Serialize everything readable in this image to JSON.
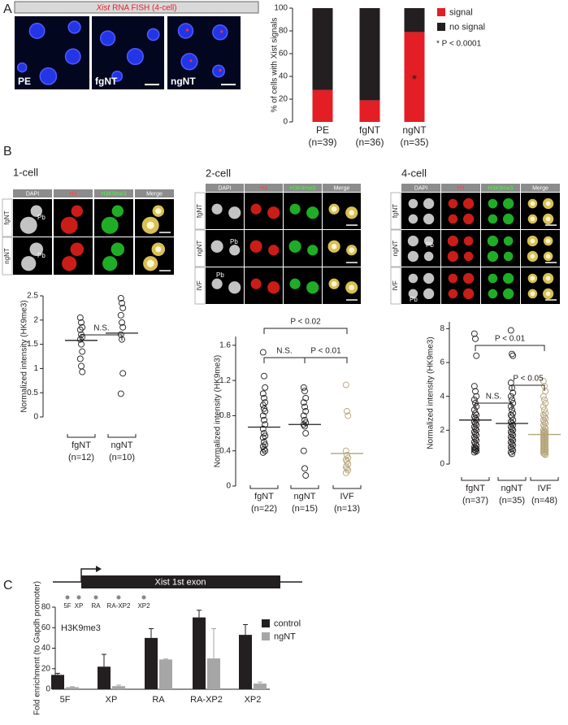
{
  "figure": {
    "panel_labels": [
      "A",
      "B",
      "C"
    ],
    "fish_title": {
      "gene": "Xist",
      "text": "RNA FISH (4-cell)"
    },
    "fish_images": [
      "PE",
      "fgNT",
      "ngNT"
    ],
    "stages": [
      {
        "title": "1-cell",
        "rows": [
          "fgNT",
          "ngNT"
        ]
      },
      {
        "title": "2-cell",
        "rows": [
          "fgNT",
          "ngNT",
          "IVF"
        ]
      },
      {
        "title": "4-cell",
        "rows": [
          "fgNT",
          "ngNT",
          "IVF"
        ]
      }
    ],
    "channels": [
      "DAPI",
      "H3",
      "H3K9me3",
      "Merge"
    ],
    "polar_body": "Pb",
    "gene": {
      "exon": "Xist 1st exon",
      "primers": [
        "5F",
        "XP",
        "RA",
        "RA-XP2",
        "XP2"
      ]
    }
  },
  "chart_data": [
    {
      "type": "stacked_bar",
      "ylabel": "% of cells with Xist signals",
      "categories": [
        "PE",
        "fgNT",
        "ngNT"
      ],
      "n_labels": [
        "(n=39)",
        "(n=36)",
        "(n=35)"
      ],
      "series": [
        {
          "name": "signal",
          "color": "#e31e24",
          "values": [
            28,
            19,
            79
          ]
        },
        {
          "name": "no signal",
          "color": "#231f20",
          "values": [
            72,
            81,
            21
          ]
        }
      ],
      "ylim": [
        0,
        100
      ],
      "yticks": [
        0,
        20,
        40,
        60,
        80,
        100
      ],
      "marker": {
        "text": "*",
        "category": 2
      },
      "note": "* P < 0.0001"
    },
    {
      "type": "dot",
      "ylabel": "Normalized intensity (HK9me3)",
      "categories": [
        "fgNT",
        "ngNT"
      ],
      "n_labels": [
        "(n=12)",
        "(n=10)"
      ],
      "colors": [
        "#231f20",
        "#231f20"
      ],
      "values": [
        [
          2.05,
          1.95,
          1.85,
          1.8,
          1.7,
          1.65,
          1.6,
          1.5,
          1.35,
          1.2,
          1.05,
          0.93
        ],
        [
          2.45,
          2.35,
          2.25,
          2.1,
          1.95,
          1.85,
          1.7,
          1.6,
          0.9,
          0.48
        ]
      ],
      "means": [
        1.58,
        1.73
      ],
      "ylim": [
        0,
        2.5
      ],
      "yticks": [
        0,
        0.5,
        1,
        1.5,
        2,
        2.5
      ],
      "brackets": [
        {
          "pair": [
            0,
            1
          ],
          "label": "N.S."
        }
      ]
    },
    {
      "type": "dot",
      "ylabel": "Normalized intensity (HK9me3)",
      "categories": [
        "fgNT",
        "ngNT",
        "IVF"
      ],
      "n_labels": [
        "(n=22)",
        "(n=15)",
        "(n=13)"
      ],
      "colors": [
        "#231f20",
        "#231f20",
        "#b5a47a"
      ],
      "values": [
        [
          1.52,
          1.25,
          1.12,
          1.05,
          1.0,
          0.95,
          0.92,
          0.88,
          0.85,
          0.8,
          0.75,
          0.7,
          0.65,
          0.6,
          0.57,
          0.55,
          0.5,
          0.47,
          0.45,
          0.42,
          0.4,
          0.38
        ],
        [
          1.12,
          1.08,
          1.0,
          0.95,
          0.9,
          0.85,
          0.8,
          0.75,
          0.72,
          0.7,
          0.68,
          0.6,
          0.4,
          0.2,
          0.12
        ],
        [
          1.15,
          0.85,
          0.8,
          0.4,
          0.35,
          0.32,
          0.3,
          0.28,
          0.25,
          0.22,
          0.2,
          0.18,
          0.15
        ]
      ],
      "means": [
        0.67,
        0.7,
        0.37
      ],
      "ylim": [
        0,
        1.7
      ],
      "yticks": [
        0,
        0.4,
        0.8,
        1.2,
        1.6
      ],
      "brackets": [
        {
          "pair": [
            0,
            1
          ],
          "label": "N.S."
        },
        {
          "pair": [
            1,
            2
          ],
          "label": "P < 0.01"
        },
        {
          "pair": [
            0,
            2
          ],
          "label": "P < 0.02"
        }
      ]
    },
    {
      "type": "dot",
      "ylabel": "Normalized intensity (HK9me3)",
      "categories": [
        "fgNT",
        "ngNT",
        "IVF"
      ],
      "n_labels": [
        "(n=37)",
        "(n=35)",
        "(n=48)"
      ],
      "colors": [
        "#231f20",
        "#231f20",
        "#b5a47a"
      ],
      "values": [
        [
          7.7,
          7.4,
          6.4,
          4.6,
          4.3,
          4.0,
          3.8,
          3.6,
          3.4,
          3.2,
          3.0,
          2.9,
          2.8,
          2.7,
          2.6,
          2.5,
          2.4,
          2.3,
          2.2,
          2.1,
          2.0,
          1.9,
          1.8,
          1.7,
          1.6,
          1.5,
          1.4,
          1.3,
          1.2,
          1.1,
          1.0,
          0.95,
          0.9,
          0.85,
          0.8,
          0.75,
          0.7
        ],
        [
          7.9,
          6.5,
          6.4,
          4.8,
          4.5,
          4.2,
          4.0,
          3.8,
          3.6,
          3.4,
          3.2,
          3.0,
          2.9,
          2.8,
          2.6,
          2.5,
          2.4,
          2.3,
          2.2,
          2.1,
          2.0,
          1.9,
          1.8,
          1.7,
          1.6,
          1.5,
          1.4,
          1.3,
          1.2,
          1.1,
          1.0,
          0.9,
          0.8,
          0.7,
          0.6
        ],
        [
          4.9,
          4.6,
          4.3,
          4.0,
          3.8,
          3.6,
          3.4,
          3.2,
          3.0,
          2.9,
          2.8,
          2.7,
          2.6,
          2.5,
          2.4,
          2.3,
          2.2,
          2.1,
          2.0,
          1.95,
          1.9,
          1.85,
          1.8,
          1.75,
          1.7,
          1.65,
          1.6,
          1.55,
          1.5,
          1.45,
          1.4,
          1.35,
          1.3,
          1.25,
          1.2,
          1.15,
          1.1,
          1.05,
          1.0,
          0.95,
          0.9,
          0.85,
          0.8,
          0.75,
          0.7,
          0.65,
          0.6,
          0.55
        ]
      ],
      "means": [
        2.6,
        2.4,
        1.75
      ],
      "ylim": [
        0,
        8.4
      ],
      "yticks": [
        0,
        2,
        4,
        6,
        8
      ],
      "brackets": [
        {
          "pair": [
            0,
            1
          ],
          "label": "N.S."
        },
        {
          "pair": [
            1,
            2
          ],
          "label": "P < 0.05"
        },
        {
          "pair": [
            0,
            2
          ],
          "label": "P < 0.01"
        }
      ]
    },
    {
      "type": "bar",
      "ylabel": "Fold enrichment (to Gapdh promoter)",
      "inset_label": "H3K9me3",
      "categories": [
        "5F",
        "XP",
        "RA",
        "RA-XP2",
        "XP2"
      ],
      "series": [
        {
          "name": "control",
          "color": "#231f20",
          "values": [
            14,
            22,
            50,
            70,
            53
          ],
          "errors": [
            1.5,
            12,
            9,
            7,
            10
          ]
        },
        {
          "name": "ngNT",
          "color": "#a6a6a6",
          "values": [
            2,
            3,
            29,
            30,
            5.5
          ],
          "errors": [
            0.5,
            1,
            0.5,
            29,
            1.5
          ]
        }
      ],
      "ylim": [
        0,
        80
      ],
      "yticks": [
        0,
        20,
        40,
        60,
        80
      ]
    }
  ]
}
